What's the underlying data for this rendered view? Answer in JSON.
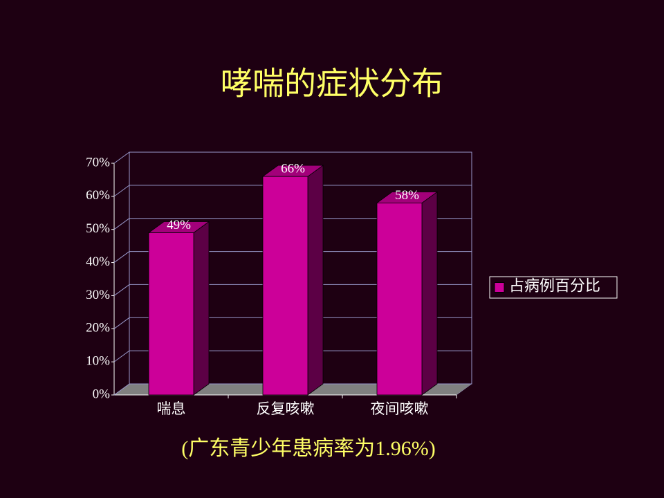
{
  "chart_data": {
    "type": "bar3d",
    "title": "哮喘的症状分布",
    "categories": [
      "喘息",
      "反复咳嗽",
      "夜间咳嗽"
    ],
    "series": [
      {
        "name": "占病例百分比",
        "color": "#cc0099",
        "values": [
          49,
          66,
          58
        ],
        "value_labels": [
          "49%",
          "66%",
          "58%"
        ]
      }
    ],
    "ylim": [
      0,
      70
    ],
    "yticks": [
      {
        "value": 0,
        "label": "0%"
      },
      {
        "value": 10,
        "label": "10%"
      },
      {
        "value": 20,
        "label": "20%"
      },
      {
        "value": 30,
        "label": "30%"
      },
      {
        "value": 40,
        "label": "40%"
      },
      {
        "value": 50,
        "label": "50%"
      },
      {
        "value": 60,
        "label": "60%"
      },
      {
        "value": 70,
        "label": "70%"
      }
    ],
    "grid": true,
    "legend": "right",
    "annotation": "(广东青少年患病率为1.96%)"
  }
}
